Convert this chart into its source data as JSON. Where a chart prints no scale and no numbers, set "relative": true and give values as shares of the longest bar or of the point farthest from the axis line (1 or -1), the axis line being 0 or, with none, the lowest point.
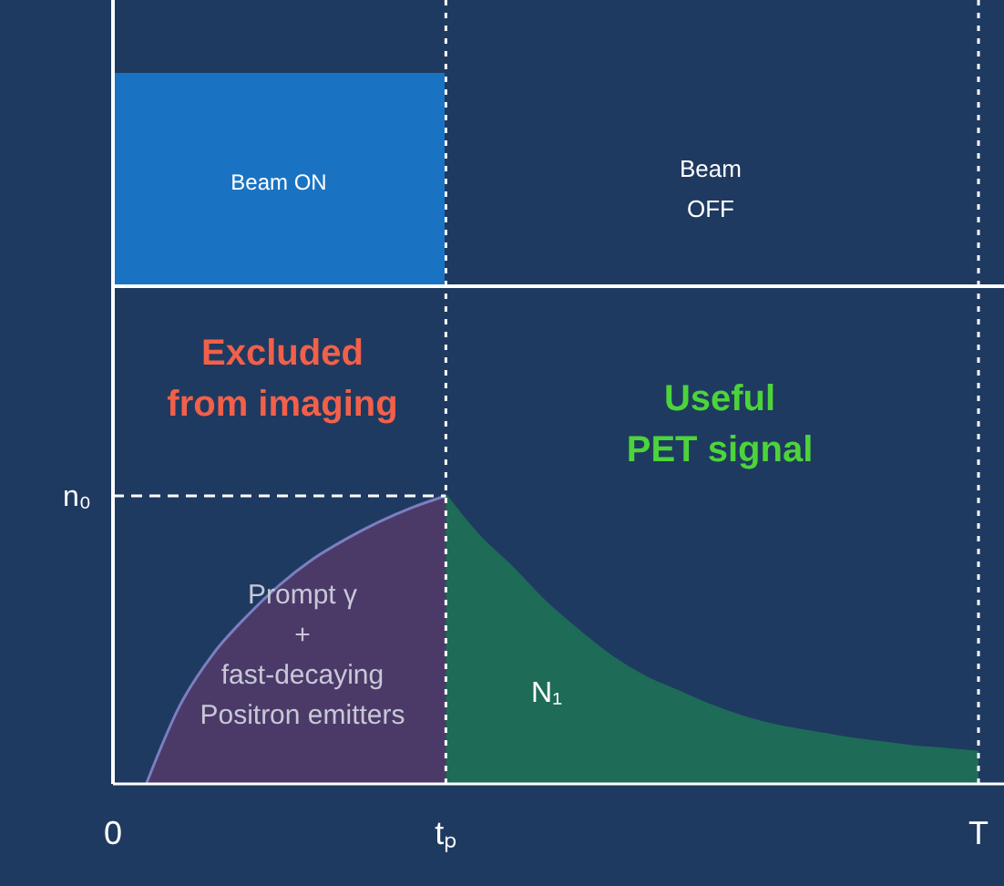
{
  "chart_data": {
    "type": "area",
    "relative": true,
    "categories": [
      "0",
      null,
      null,
      null,
      null,
      null,
      null,
      null,
      null,
      null,
      "tₚ",
      null,
      null,
      null,
      null,
      null,
      null,
      null,
      null,
      null,
      null,
      null,
      null,
      null,
      null,
      null,
      "T"
    ],
    "series": [
      {
        "color": "#4b3a68",
        "values": [
          null,
          0,
          0.27,
          0.45,
          0.58,
          0.69,
          0.78,
          0.85,
          0.91,
          0.96,
          1,
          null,
          null,
          null,
          null,
          null,
          null,
          null,
          null,
          null,
          null,
          null,
          null,
          null,
          null,
          null,
          null
        ]
      },
      {
        "color": "#1e6b58",
        "values": [
          null,
          null,
          null,
          null,
          null,
          null,
          null,
          null,
          null,
          null,
          1,
          0.86,
          0.75,
          0.63,
          0.53,
          0.44,
          0.37,
          0.32,
          0.27,
          0.23,
          0.2,
          0.18,
          0.16,
          0.145,
          0.13,
          0.12,
          0.11
        ]
      }
    ],
    "ref_lines": [
      {
        "axis": "x",
        "value": "tₚ",
        "line_style": "dotted"
      },
      {
        "axis": "x",
        "value": "T",
        "line_style": "dotted"
      },
      {
        "axis": "y",
        "value": 1,
        "label": "n₀",
        "line_style": "dashed"
      }
    ],
    "annotations": [
      "Beam ON",
      "Beam\nOFF",
      "Excluded\nfrom imaging",
      "Useful\nPET signal",
      "Prompt γ\n+\nfast-decaying\nPositron emitters",
      "N₁"
    ]
  }
}
